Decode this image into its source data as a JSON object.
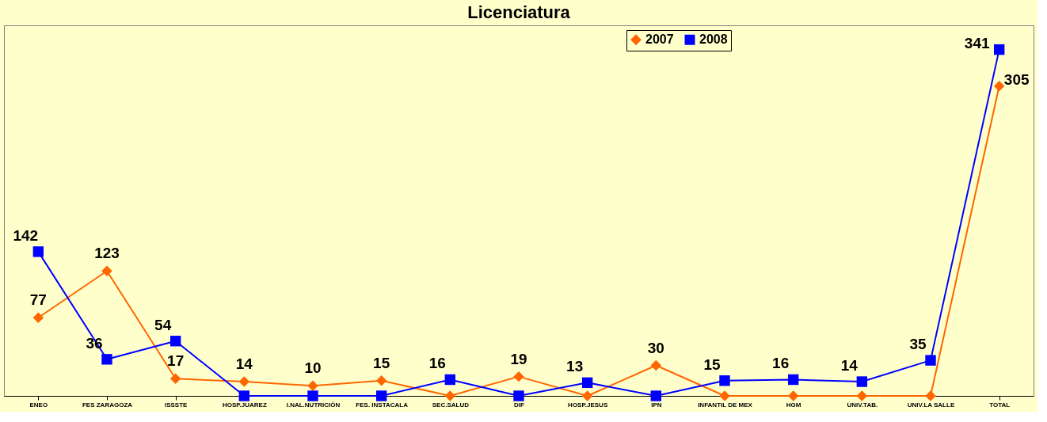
{
  "chart_data": {
    "type": "line",
    "title": "Licenciatura",
    "categories": [
      "ENEO",
      "FES ZARAGOZA",
      "ISSSTE",
      "HOSP.JUAREZ",
      "I.NAL.NUTRICIÓN",
      "FES. INSTACALA",
      "SEC.SALUD",
      "DIF",
      "HOSP.JESUS",
      "IPN",
      "INFANTIL DE MEX",
      "HGM",
      "UNIV.TAB.",
      "UNIV.LA SALLE",
      "TOTAL"
    ],
    "series": [
      {
        "name": "2007",
        "color": "#ff6600",
        "marker": "diamond",
        "values": [
          77,
          123,
          17,
          14,
          10,
          15,
          0,
          19,
          0,
          30,
          0,
          0,
          0,
          0,
          305
        ],
        "value_labels": [
          "77",
          "123",
          "17",
          "14",
          "10",
          "15",
          null,
          "19",
          null,
          "30",
          null,
          null,
          null,
          null,
          "305"
        ]
      },
      {
        "name": "2008",
        "color": "#0000ff",
        "marker": "square",
        "values": [
          142,
          36,
          54,
          0,
          0,
          0,
          16,
          0,
          13,
          0,
          15,
          16,
          14,
          35,
          341
        ],
        "value_labels": [
          "142",
          "36",
          "54",
          null,
          null,
          null,
          "16",
          null,
          "13",
          null,
          "15",
          "16",
          "14",
          "35",
          "341"
        ]
      }
    ],
    "legend": "top right",
    "grid": false,
    "tick_labels": "x"
  }
}
